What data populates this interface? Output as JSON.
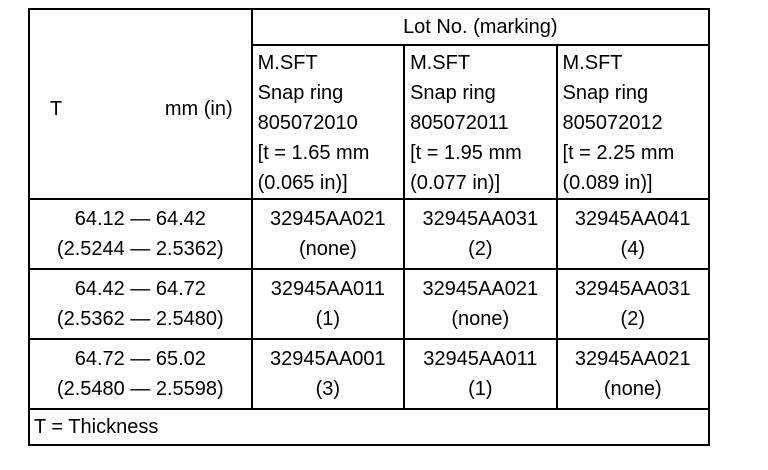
{
  "table": {
    "lot_header": "Lot No. (marking)",
    "t_header": {
      "symbol": "T",
      "unit": "mm (in)"
    },
    "columns": [
      {
        "line1": "M.SFT",
        "line2": "Snap ring",
        "line3": "805072010",
        "line4": "[t = 1.65 mm",
        "line5": "(0.065 in)]"
      },
      {
        "line1": "M.SFT",
        "line2": "Snap ring",
        "line3": "805072011",
        "line4": "[t = 1.95 mm",
        "line5": "(0.077 in)]"
      },
      {
        "line1": "M.SFT",
        "line2": "Snap ring",
        "line3": "805072012",
        "line4": "[t = 2.25 mm",
        "line5": "(0.089 in)]"
      }
    ],
    "rows": [
      {
        "range_mm": "64.12 — 64.42",
        "range_in": "(2.5244 — 2.5362)",
        "cells": [
          {
            "part": "32945AA021",
            "mark": "(none)"
          },
          {
            "part": "32945AA031",
            "mark": "(2)"
          },
          {
            "part": "32945AA041",
            "mark": "(4)"
          }
        ]
      },
      {
        "range_mm": "64.42 — 64.72",
        "range_in": "(2.5362 — 2.5480)",
        "cells": [
          {
            "part": "32945AA011",
            "mark": "(1)"
          },
          {
            "part": "32945AA021",
            "mark": "(none)"
          },
          {
            "part": "32945AA031",
            "mark": "(2)"
          }
        ]
      },
      {
        "range_mm": "64.72 — 65.02",
        "range_in": "(2.5480 — 2.5598)",
        "cells": [
          {
            "part": "32945AA001",
            "mark": "(3)"
          },
          {
            "part": "32945AA011",
            "mark": "(1)"
          },
          {
            "part": "32945AA021",
            "mark": "(none)"
          }
        ]
      }
    ],
    "footnote": "T = Thickness"
  }
}
